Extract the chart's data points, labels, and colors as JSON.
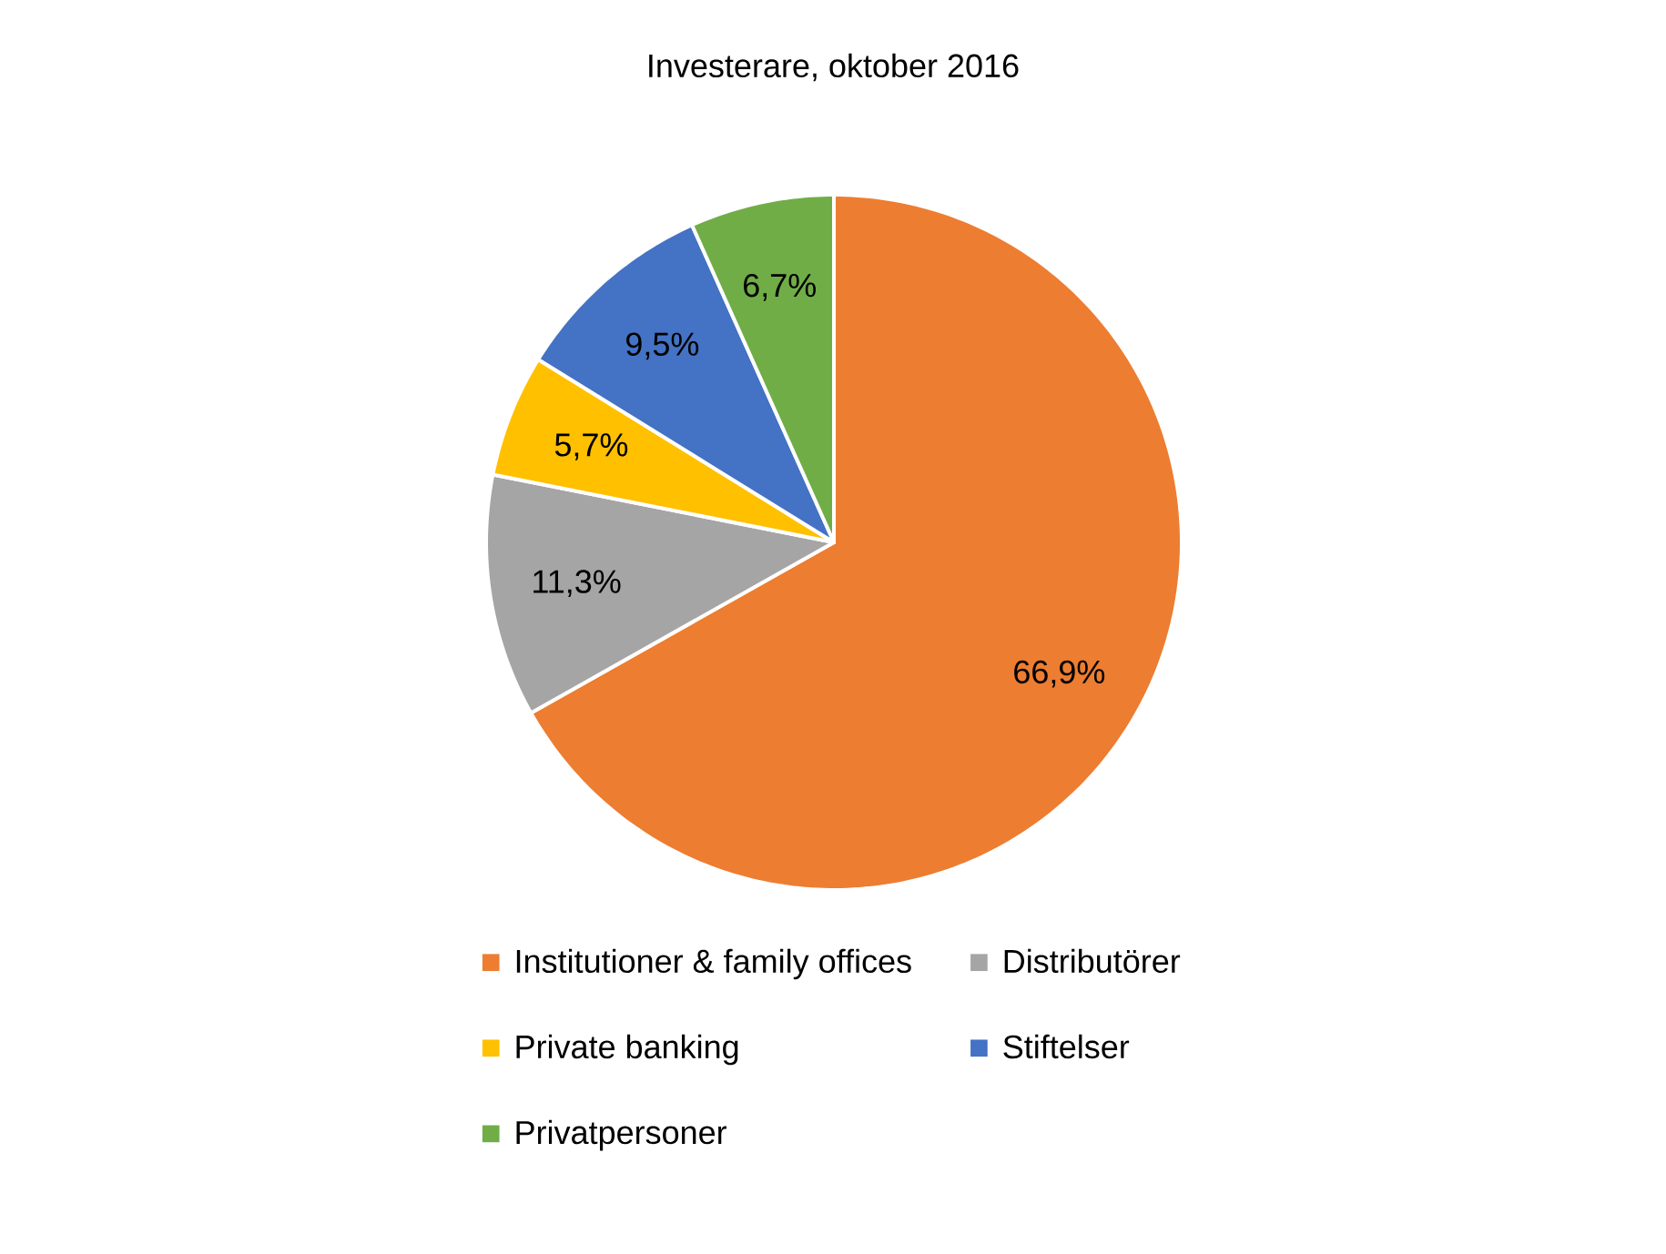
{
  "chart_data": {
    "type": "pie",
    "title": "Investerare, oktober 2016",
    "categories": [
      "Institutioner & family offices",
      "Distributörer",
      "Private banking",
      "Stiftelser",
      "Privatpersoner"
    ],
    "values": [
      66.9,
      11.3,
      5.7,
      9.5,
      6.7
    ],
    "value_labels": [
      "66,9%",
      "11,3%",
      "5,7%",
      "9,5%",
      "6,7%"
    ],
    "colors": [
      "#ed7d31",
      "#a5a5a5",
      "#ffc000",
      "#4472c4",
      "#70ad47"
    ],
    "legend": "bottom"
  }
}
